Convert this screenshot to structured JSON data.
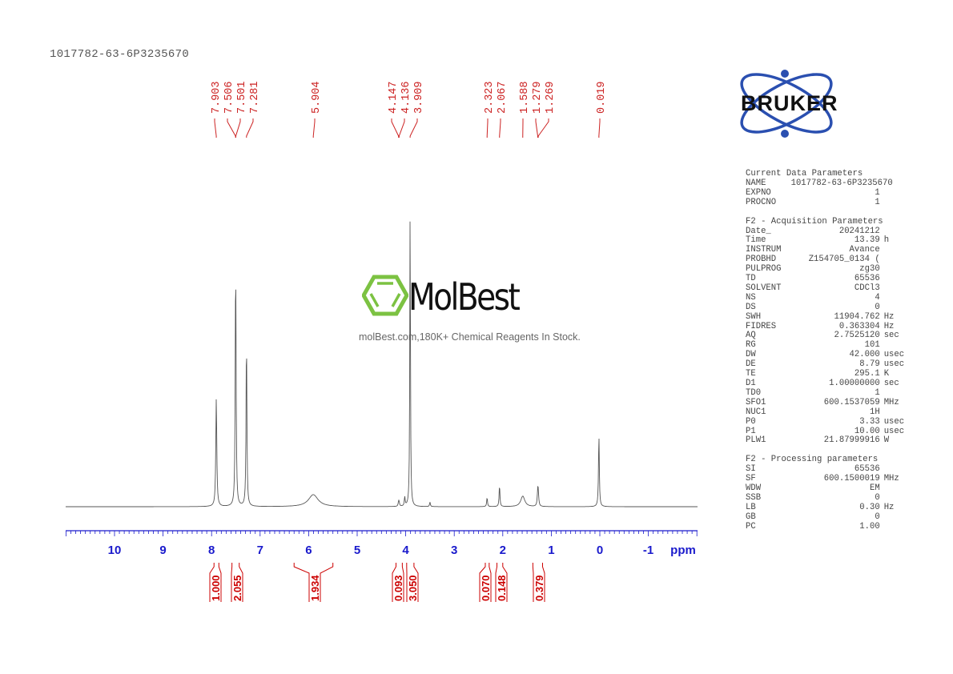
{
  "header": {
    "title": "1017782-63-6P3235670"
  },
  "logo": {
    "brand": "BRUKER",
    "colors": {
      "orbit": "#2a4fb0",
      "text": "#111111"
    }
  },
  "watermark": {
    "brand": "MolBest",
    "tagline": "molBest.com,180K+ Chemical Reagents In Stock.",
    "icon": "benzene-ring-icon",
    "icon_color": "#7cc242"
  },
  "parameters": {
    "sections": [
      {
        "heading": "Current Data Parameters",
        "rows": [
          {
            "key": "NAME",
            "value": "1017782-63-6P3235670",
            "unit": ""
          },
          {
            "key": "EXPNO",
            "value": "1",
            "unit": ""
          },
          {
            "key": "PROCNO",
            "value": "1",
            "unit": ""
          }
        ]
      },
      {
        "heading": "F2 - Acquisition Parameters",
        "rows": [
          {
            "key": "Date_",
            "value": "20241212",
            "unit": ""
          },
          {
            "key": "Time",
            "value": "13.39",
            "unit": "h"
          },
          {
            "key": "INSTRUM",
            "value": "Avance",
            "unit": ""
          },
          {
            "key": "PROBHD",
            "value": "Z154705_0134 (",
            "unit": ""
          },
          {
            "key": "PULPROG",
            "value": "zg30",
            "unit": ""
          },
          {
            "key": "TD",
            "value": "65536",
            "unit": ""
          },
          {
            "key": "SOLVENT",
            "value": "CDCl3",
            "unit": ""
          },
          {
            "key": "NS",
            "value": "4",
            "unit": ""
          },
          {
            "key": "DS",
            "value": "0",
            "unit": ""
          },
          {
            "key": "SWH",
            "value": "11904.762",
            "unit": "Hz"
          },
          {
            "key": "FIDRES",
            "value": "0.363304",
            "unit": "Hz"
          },
          {
            "key": "AQ",
            "value": "2.7525120",
            "unit": "sec"
          },
          {
            "key": "RG",
            "value": "101",
            "unit": ""
          },
          {
            "key": "DW",
            "value": "42.000",
            "unit": "usec"
          },
          {
            "key": "DE",
            "value": "8.79",
            "unit": "usec"
          },
          {
            "key": "TE",
            "value": "295.1",
            "unit": "K"
          },
          {
            "key": "D1",
            "value": "1.00000000",
            "unit": "sec"
          },
          {
            "key": "TD0",
            "value": "1",
            "unit": ""
          },
          {
            "key": "SFO1",
            "value": "600.1537059",
            "unit": "MHz"
          },
          {
            "key": "NUC1",
            "value": "1H",
            "unit": ""
          },
          {
            "key": "P0",
            "value": "3.33",
            "unit": "usec"
          },
          {
            "key": "P1",
            "value": "10.00",
            "unit": "usec"
          },
          {
            "key": "PLW1",
            "value": "21.87999916",
            "unit": "W"
          }
        ]
      },
      {
        "heading": "F2 - Processing parameters",
        "rows": [
          {
            "key": "SI",
            "value": "65536",
            "unit": ""
          },
          {
            "key": "SF",
            "value": "600.1500019",
            "unit": "MHz"
          },
          {
            "key": "WDW",
            "value": "EM",
            "unit": ""
          },
          {
            "key": "SSB",
            "value": "0",
            "unit": ""
          },
          {
            "key": "LB",
            "value": "0.30",
            "unit": "Hz"
          },
          {
            "key": "GB",
            "value": "0",
            "unit": ""
          },
          {
            "key": "PC",
            "value": "1.00",
            "unit": ""
          }
        ]
      }
    ]
  },
  "chart_data": {
    "type": "line",
    "title": "1017782-63-6P3235670",
    "xlabel": "ppm",
    "ylabel": "",
    "xlim": [
      11.0,
      -2.0
    ],
    "x_ticks": [
      10,
      9,
      8,
      7,
      6,
      5,
      4,
      3,
      2,
      1,
      0,
      -1
    ],
    "x_tick_labels": [
      "10",
      "9",
      "8",
      "7",
      "6",
      "5",
      "4",
      "3",
      "2",
      "1",
      "0",
      "-1"
    ],
    "grid": false,
    "colors": {
      "axis": "#1a1acc",
      "peak_labels": "#cc2222",
      "integrals": "#cc0000",
      "trace": "#555555"
    },
    "peak_labels": [
      "7.903",
      "7.506",
      "7.501",
      "7.281",
      "5.904",
      "4.147",
      "4.136",
      "3.909",
      "2.323",
      "2.067",
      "1.588",
      "1.279",
      "1.269",
      "0.019"
    ],
    "peaks": [
      {
        "ppm": 7.903,
        "height": 0.36,
        "width": 0.012
      },
      {
        "ppm": 7.506,
        "height": 0.44,
        "width": 0.01
      },
      {
        "ppm": 7.501,
        "height": 0.4,
        "width": 0.01
      },
      {
        "ppm": 7.281,
        "height": 0.56,
        "width": 0.01
      },
      {
        "ppm": 5.904,
        "height": 0.04,
        "width": 0.12
      },
      {
        "ppm": 4.147,
        "height": 0.014,
        "width": 0.01
      },
      {
        "ppm": 4.136,
        "height": 0.012,
        "width": 0.01
      },
      {
        "ppm": 4.02,
        "height": 0.03,
        "width": 0.01
      },
      {
        "ppm": 3.909,
        "height": 1.0,
        "width": 0.008
      },
      {
        "ppm": 3.5,
        "height": 0.015,
        "width": 0.01
      },
      {
        "ppm": 2.323,
        "height": 0.03,
        "width": 0.01
      },
      {
        "ppm": 2.067,
        "height": 0.07,
        "width": 0.01
      },
      {
        "ppm": 1.588,
        "height": 0.035,
        "width": 0.05
      },
      {
        "ppm": 1.279,
        "height": 0.045,
        "width": 0.012
      },
      {
        "ppm": 1.269,
        "height": 0.035,
        "width": 0.012
      },
      {
        "ppm": 0.019,
        "height": 0.24,
        "width": 0.01
      }
    ],
    "integrals": [
      {
        "from": 7.95,
        "to": 7.85,
        "value": "1.000"
      },
      {
        "from": 7.58,
        "to": 7.43,
        "value": "2.055"
      },
      {
        "from": 6.3,
        "to": 5.5,
        "value": "1.934"
      },
      {
        "from": 4.2,
        "to": 4.07,
        "value": "0.093"
      },
      {
        "from": 3.98,
        "to": 3.83,
        "value": "3.050"
      },
      {
        "from": 2.36,
        "to": 2.28,
        "value": "0.070"
      },
      {
        "from": 2.12,
        "to": 2.0,
        "value": "0.148"
      },
      {
        "from": 1.38,
        "to": 1.18,
        "value": "0.379"
      }
    ]
  }
}
